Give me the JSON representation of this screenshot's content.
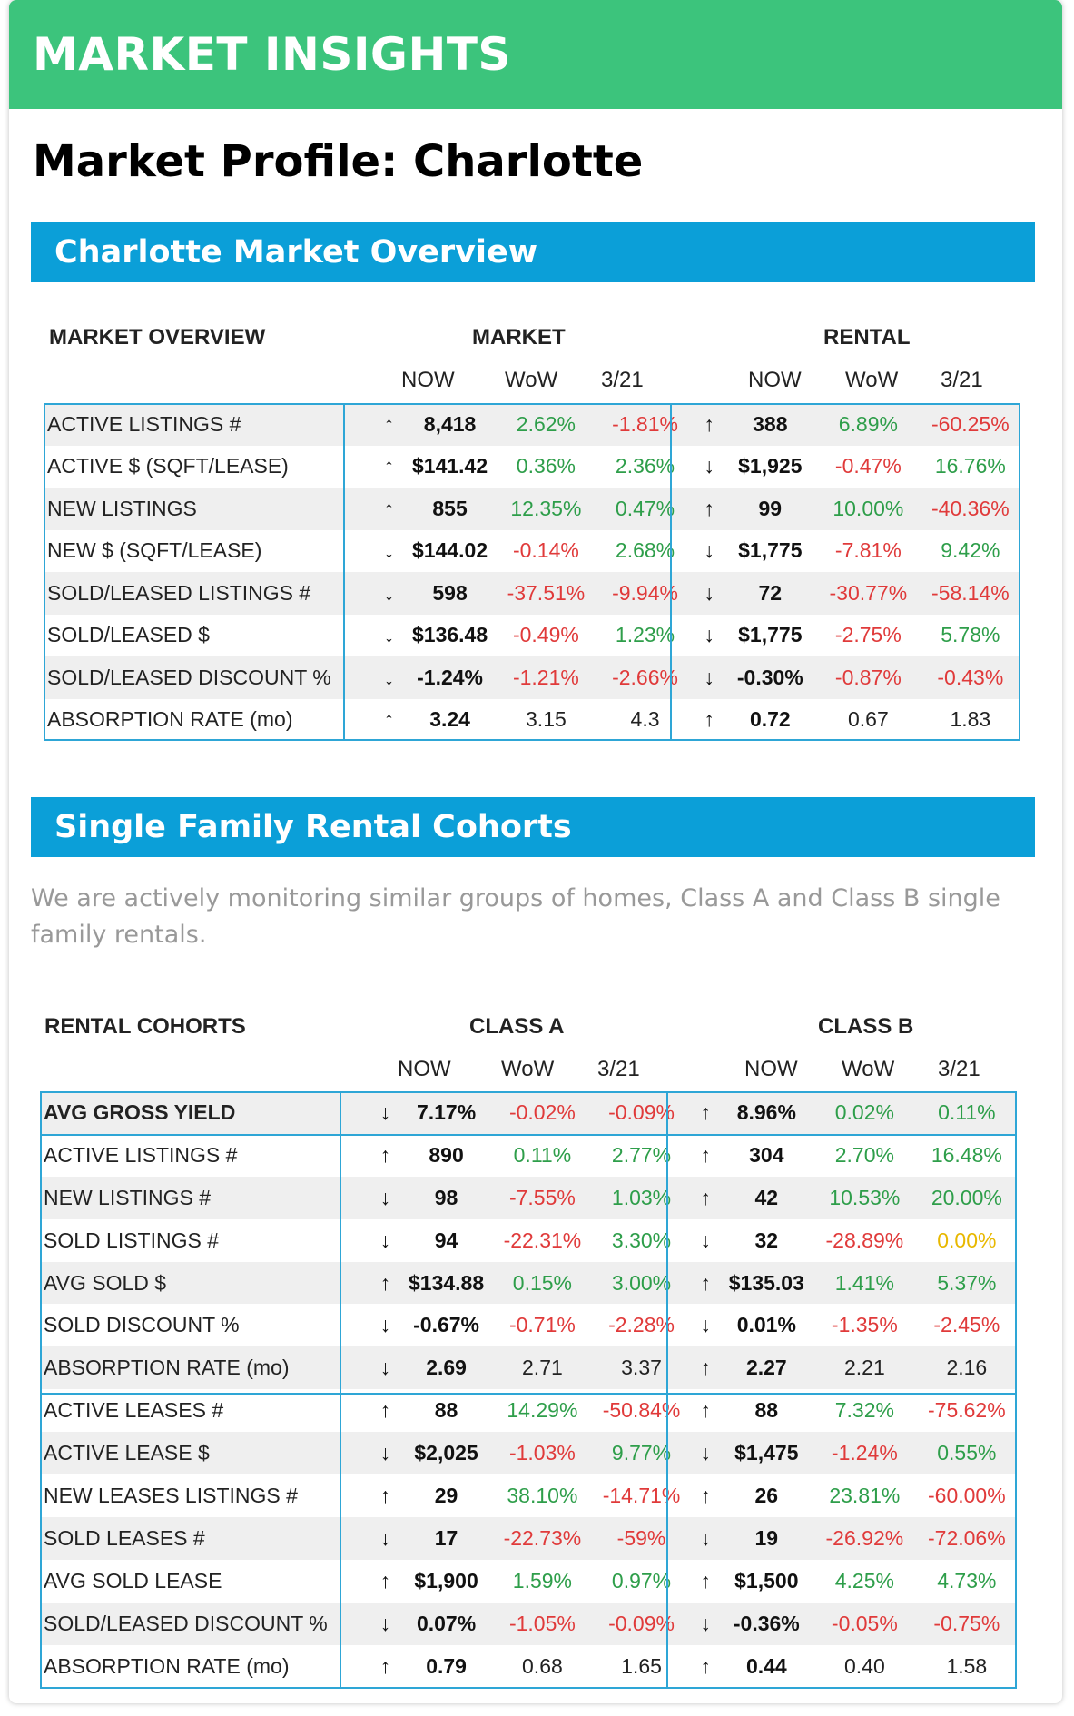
{
  "banner": {
    "title": "MARKET INSIGHTS"
  },
  "page_title": "Market Profile: Charlotte",
  "overview": {
    "heading": "Charlotte Market Overview",
    "label_header": "MARKET OVERVIEW",
    "group1": "MARKET",
    "group2": "RENTAL",
    "col_now": "NOW",
    "col_wow": "WoW",
    "col_date": "3/21",
    "rows": [
      {
        "label": "ACTIVE LISTINGS #",
        "m_arrow": "↑",
        "m_now": "8,418",
        "m_wow": "2.62%",
        "m_wow_c": "g",
        "m_d": "-1.81%",
        "m_d_c": "r",
        "r_arrow": "↑",
        "r_now": "388",
        "r_wow": "6.89%",
        "r_wow_c": "g",
        "r_d": "-60.25%",
        "r_d_c": "r"
      },
      {
        "label": "ACTIVE $ (SQFT/LEASE)",
        "m_arrow": "↑",
        "m_now": "$141.42",
        "m_wow": "0.36%",
        "m_wow_c": "g",
        "m_d": "2.36%",
        "m_d_c": "g",
        "r_arrow": "↓",
        "r_now": "$1,925",
        "r_wow": "-0.47%",
        "r_wow_c": "r",
        "r_d": "16.76%",
        "r_d_c": "g"
      },
      {
        "label": "NEW LISTINGS",
        "m_arrow": "↑",
        "m_now": "855",
        "m_wow": "12.35%",
        "m_wow_c": "g",
        "m_d": "0.47%",
        "m_d_c": "g",
        "r_arrow": "↑",
        "r_now": "99",
        "r_wow": "10.00%",
        "r_wow_c": "g",
        "r_d": "-40.36%",
        "r_d_c": "r"
      },
      {
        "label": "NEW $ (SQFT/LEASE)",
        "m_arrow": "↓",
        "m_now": "$144.02",
        "m_wow": "-0.14%",
        "m_wow_c": "r",
        "m_d": "2.68%",
        "m_d_c": "g",
        "r_arrow": "↓",
        "r_now": "$1,775",
        "r_wow": "-7.81%",
        "r_wow_c": "r",
        "r_d": "9.42%",
        "r_d_c": "g"
      },
      {
        "label": "SOLD/LEASED LISTINGS #",
        "m_arrow": "↓",
        "m_now": "598",
        "m_wow": "-37.51%",
        "m_wow_c": "r",
        "m_d": "-9.94%",
        "m_d_c": "r",
        "r_arrow": "↓",
        "r_now": "72",
        "r_wow": "-30.77%",
        "r_wow_c": "r",
        "r_d": "-58.14%",
        "r_d_c": "r"
      },
      {
        "label": "SOLD/LEASED $",
        "m_arrow": "↓",
        "m_now": "$136.48",
        "m_wow": "-0.49%",
        "m_wow_c": "r",
        "m_d": "1.23%",
        "m_d_c": "g",
        "r_arrow": "↓",
        "r_now": "$1,775",
        "r_wow": "-2.75%",
        "r_wow_c": "r",
        "r_d": "5.78%",
        "r_d_c": "g"
      },
      {
        "label": "SOLD/LEASED DISCOUNT %",
        "m_arrow": "↓",
        "m_now": "-1.24%",
        "m_wow": "-1.21%",
        "m_wow_c": "r",
        "m_d": "-2.66%",
        "m_d_c": "r",
        "r_arrow": "↓",
        "r_now": "-0.30%",
        "r_wow": "-0.87%",
        "r_wow_c": "r",
        "r_d": "-0.43%",
        "r_d_c": "r"
      },
      {
        "label": "ABSORPTION RATE (mo)",
        "m_arrow": "↑",
        "m_now": "3.24",
        "m_wow": "3.15",
        "m_wow_c": "k",
        "m_d": "4.3",
        "m_d_c": "k",
        "r_arrow": "↑",
        "r_now": "0.72",
        "r_wow": "0.67",
        "r_wow_c": "k",
        "r_d": "1.83",
        "r_d_c": "k"
      }
    ]
  },
  "cohorts": {
    "heading": "Single Family Rental Cohorts",
    "description": "We are actively monitoring similar groups of homes, Class A and Class B single family rentals.",
    "label_header": "RENTAL COHORTS",
    "group1": "CLASS A",
    "group2": "CLASS B",
    "col_now": "NOW",
    "col_wow": "WoW",
    "col_date": "3/21",
    "rows": [
      {
        "label": "AVG GROSS YIELD",
        "bold": true,
        "m_arrow": "↓",
        "m_now": "7.17%",
        "m_wow": "-0.02%",
        "m_wow_c": "r",
        "m_d": "-0.09%",
        "m_d_c": "r",
        "r_arrow": "↑",
        "r_now": "8.96%",
        "r_wow": "0.02%",
        "r_wow_c": "g",
        "r_d": "0.11%",
        "r_d_c": "g"
      },
      {
        "label": "ACTIVE LISTINGS #",
        "m_arrow": "↑",
        "m_now": "890",
        "m_wow": "0.11%",
        "m_wow_c": "g",
        "m_d": "2.77%",
        "m_d_c": "g",
        "r_arrow": "↑",
        "r_now": "304",
        "r_wow": "2.70%",
        "r_wow_c": "g",
        "r_d": "16.48%",
        "r_d_c": "g"
      },
      {
        "label": "NEW LISTINGS #",
        "m_arrow": "↓",
        "m_now": "98",
        "m_wow": "-7.55%",
        "m_wow_c": "r",
        "m_d": "1.03%",
        "m_d_c": "g",
        "r_arrow": "↑",
        "r_now": "42",
        "r_wow": "10.53%",
        "r_wow_c": "g",
        "r_d": "20.00%",
        "r_d_c": "g"
      },
      {
        "label": "SOLD LISTINGS #",
        "m_arrow": "↓",
        "m_now": "94",
        "m_wow": "-22.31%",
        "m_wow_c": "r",
        "m_d": "3.30%",
        "m_d_c": "g",
        "r_arrow": "↓",
        "r_now": "32",
        "r_wow": "-28.89%",
        "r_wow_c": "r",
        "r_d": "0.00%",
        "r_d_c": "y"
      },
      {
        "label": "AVG SOLD $",
        "m_arrow": "↑",
        "m_now": "$134.88",
        "m_wow": "0.15%",
        "m_wow_c": "g",
        "m_d": "3.00%",
        "m_d_c": "g",
        "r_arrow": "↑",
        "r_now": "$135.03",
        "r_wow": "1.41%",
        "r_wow_c": "g",
        "r_d": "5.37%",
        "r_d_c": "g"
      },
      {
        "label": "SOLD DISCOUNT %",
        "m_arrow": "↓",
        "m_now": "-0.67%",
        "m_wow": "-0.71%",
        "m_wow_c": "r",
        "m_d": "-2.28%",
        "m_d_c": "r",
        "r_arrow": "↓",
        "r_now": "0.01%",
        "r_wow": "-1.35%",
        "r_wow_c": "r",
        "r_d": "-2.45%",
        "r_d_c": "r"
      },
      {
        "label": "ABSORPTION RATE (mo)",
        "m_arrow": "↓",
        "m_now": "2.69",
        "m_wow": "2.71",
        "m_wow_c": "k",
        "m_d": "3.37",
        "m_d_c": "k",
        "r_arrow": "↑",
        "r_now": "2.27",
        "r_wow": "2.21",
        "r_wow_c": "k",
        "r_d": "2.16",
        "r_d_c": "k"
      },
      {
        "label": "ACTIVE LEASES #",
        "m_arrow": "↑",
        "m_now": "88",
        "m_wow": "14.29%",
        "m_wow_c": "g",
        "m_d": "-50.84%",
        "m_d_c": "r",
        "r_arrow": "↑",
        "r_now": "88",
        "r_wow": "7.32%",
        "r_wow_c": "g",
        "r_d": "-75.62%",
        "r_d_c": "r"
      },
      {
        "label": "ACTIVE LEASE $",
        "m_arrow": "↓",
        "m_now": "$2,025",
        "m_wow": "-1.03%",
        "m_wow_c": "r",
        "m_d": "9.77%",
        "m_d_c": "g",
        "r_arrow": "↓",
        "r_now": "$1,475",
        "r_wow": "-1.24%",
        "r_wow_c": "r",
        "r_d": "0.55%",
        "r_d_c": "g"
      },
      {
        "label": "NEW LEASES LISTINGS #",
        "m_arrow": "↑",
        "m_now": "29",
        "m_wow": "38.10%",
        "m_wow_c": "g",
        "m_d": "-14.71%",
        "m_d_c": "r",
        "r_arrow": "↑",
        "r_now": "26",
        "r_wow": "23.81%",
        "r_wow_c": "g",
        "r_d": "-60.00%",
        "r_d_c": "r"
      },
      {
        "label": "SOLD LEASES #",
        "m_arrow": "↓",
        "m_now": "17",
        "m_wow": "-22.73%",
        "m_wow_c": "r",
        "m_d": "-59%",
        "m_d_c": "r",
        "r_arrow": "↓",
        "r_now": "19",
        "r_wow": "-26.92%",
        "r_wow_c": "r",
        "r_d": "-72.06%",
        "r_d_c": "r"
      },
      {
        "label": "AVG SOLD LEASE",
        "m_arrow": "↑",
        "m_now": "$1,900",
        "m_wow": "1.59%",
        "m_wow_c": "g",
        "m_d": "0.97%",
        "m_d_c": "g",
        "r_arrow": "↑",
        "r_now": "$1,500",
        "r_wow": "4.25%",
        "r_wow_c": "g",
        "r_d": "4.73%",
        "r_d_c": "g"
      },
      {
        "label": "SOLD/LEASED DISCOUNT %",
        "m_arrow": "↓",
        "m_now": "0.07%",
        "m_wow": "-1.05%",
        "m_wow_c": "r",
        "m_d": "-0.09%",
        "m_d_c": "r",
        "r_arrow": "↓",
        "r_now": "-0.36%",
        "r_wow": "-0.05%",
        "r_wow_c": "r",
        "r_d": "-0.75%",
        "r_d_c": "r"
      },
      {
        "label": "ABSORPTION RATE (mo)",
        "m_arrow": "↑",
        "m_now": "0.79",
        "m_wow": "0.68",
        "m_wow_c": "k",
        "m_d": "1.65",
        "m_d_c": "k",
        "r_arrow": "↑",
        "r_now": "0.44",
        "r_wow": "0.40",
        "r_wow_c": "k",
        "r_d": "1.58",
        "r_d_c": "k"
      }
    ]
  }
}
